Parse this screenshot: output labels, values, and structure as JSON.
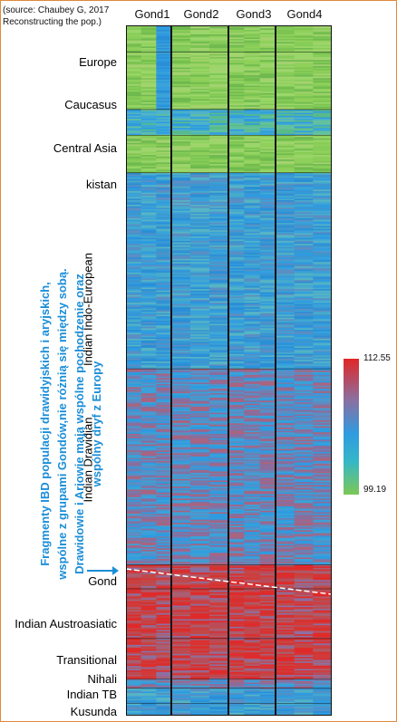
{
  "source": {
    "line1": "(source: Chaubey G, 2017",
    "line2": "Reconstructing the pop.)"
  },
  "annotation": {
    "line1": "Fragmenty IBD populacji drawidyjskich i aryjskich,",
    "line2": "wspólne z grupami Gondów,nie różnią się między sobą.",
    "line3": "Drawidowie i Ariowie mają wspólne pochodzenie oraz",
    "line4": "wspólny dryf z Europy"
  },
  "chart_data": {
    "type": "heatmap",
    "columns": [
      "Gond1",
      "Gond2",
      "Gond3",
      "Gond4"
    ],
    "row_groups": [
      {
        "label": "Europe",
        "rows": 18
      },
      {
        "label": "Caucasus",
        "rows": 38
      },
      {
        "label": "Central Asia",
        "rows": 17
      },
      {
        "label": "kistan",
        "rows": 25
      },
      {
        "label": "Indian Indo-European",
        "rows": 130
      },
      {
        "label": "Indian Dravidian",
        "rows": 130
      },
      {
        "label": "Gond",
        "rows": 16
      },
      {
        "label": "Indian Austroasiatic",
        "rows": 33
      },
      {
        "label": "Transitional",
        "rows": 27
      },
      {
        "label": "Nihali",
        "rows": 6
      },
      {
        "label": "Indian TB",
        "rows": 10
      },
      {
        "label": "Kusunda",
        "rows": 8
      }
    ],
    "scale": {
      "max": 112.55,
      "min": 99.19
    },
    "legend_max_label": "112.55",
    "legend_min_label": "99.19"
  }
}
